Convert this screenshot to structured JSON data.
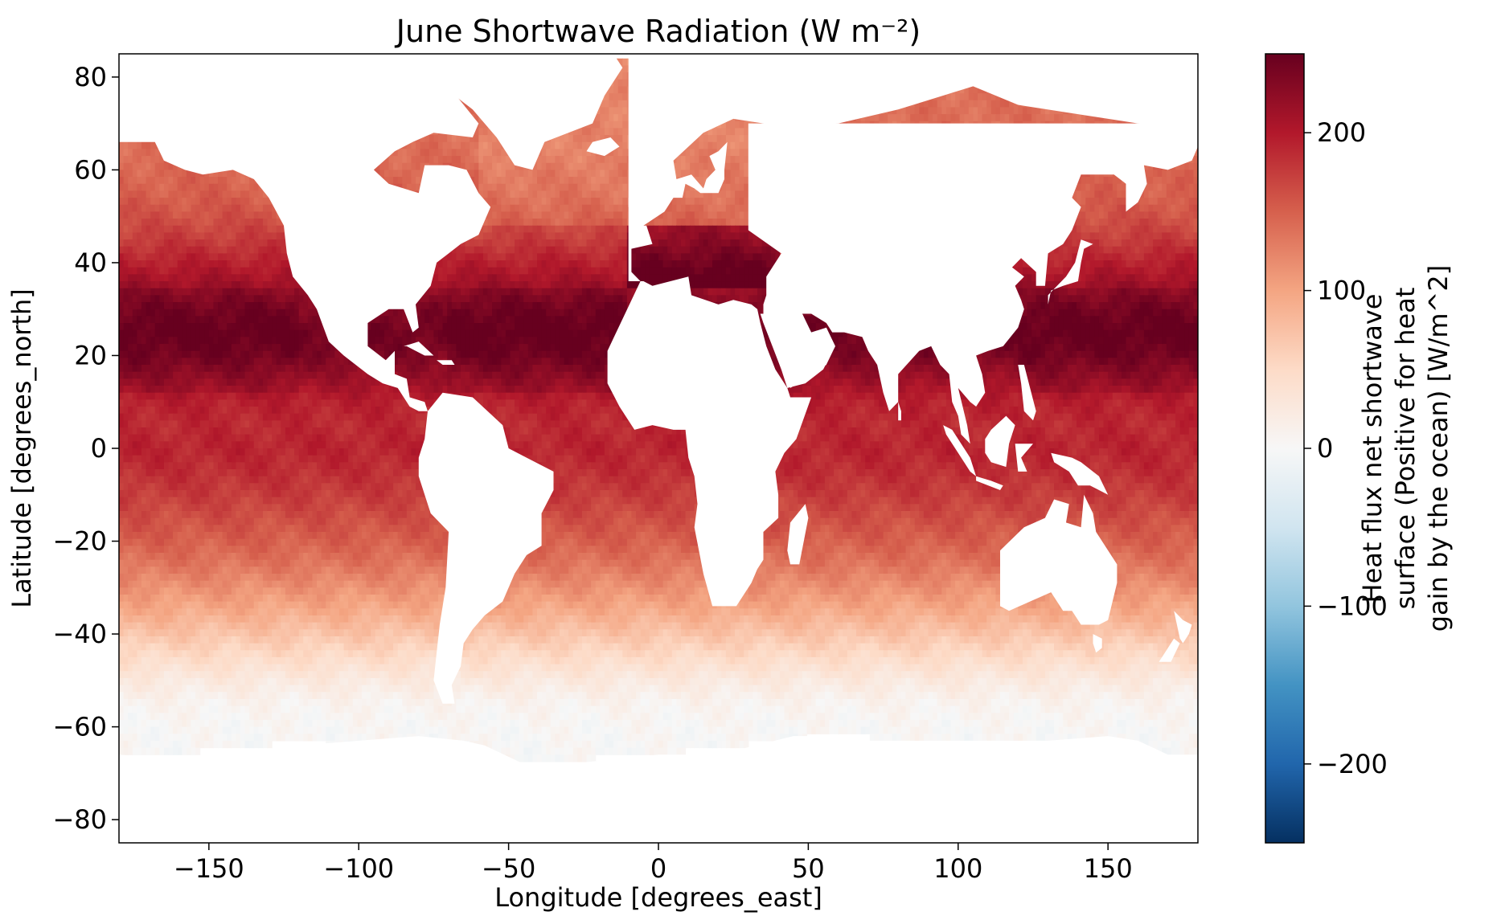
{
  "chart_data": {
    "type": "heatmap",
    "title": "June Shortwave Radiation (W m⁻²)",
    "xlabel": "Longitude [degrees_east]",
    "ylabel": "Latitude [degrees_north]",
    "xlim": [
      -180,
      180
    ],
    "ylim": [
      -85,
      85
    ],
    "xticks": [
      -150,
      -100,
      -50,
      0,
      50,
      100,
      150
    ],
    "xtick_labels": [
      "−150",
      "−100",
      "−50",
      "0",
      "50",
      "100",
      "150"
    ],
    "yticks": [
      80,
      60,
      40,
      20,
      0,
      -20,
      -40,
      -60,
      -80
    ],
    "ytick_labels": [
      "80",
      "60",
      "40",
      "20",
      "0",
      "−20",
      "−40",
      "−60",
      "−80"
    ],
    "colorbar": {
      "label_lines": [
        "Heat flux net shortwave",
        "surface (Positive for heat",
        "gain by the ocean) [W/m^2]"
      ],
      "vmin": -250,
      "vmax": 250,
      "colormap": "RdBu_r",
      "ticks": [
        200,
        100,
        0,
        -100,
        -200
      ],
      "tick_labels": [
        "200",
        "100",
        "0",
        "−100",
        "−200"
      ],
      "colors": [
        "#053061",
        "#2166ac",
        "#4393c3",
        "#92c5de",
        "#d1e5f0",
        "#f7f7f7",
        "#fddbc7",
        "#f4a582",
        "#d6604d",
        "#b2182b",
        "#67001f"
      ]
    },
    "zonal_profile": {
      "lat": [
        -68,
        -60,
        -55,
        -50,
        -45,
        -40,
        -35,
        -30,
        -25,
        -20,
        -15,
        -10,
        -5,
        0,
        5,
        10,
        15,
        20,
        25,
        30,
        35,
        40,
        45,
        50,
        55,
        60,
        65,
        70,
        75,
        80
      ],
      "value": [
        0,
        2,
        8,
        25,
        48,
        72,
        95,
        115,
        135,
        150,
        162,
        175,
        185,
        192,
        188,
        195,
        215,
        235,
        245,
        235,
        215,
        195,
        175,
        160,
        150,
        145,
        140,
        140,
        140,
        135
      ]
    }
  }
}
